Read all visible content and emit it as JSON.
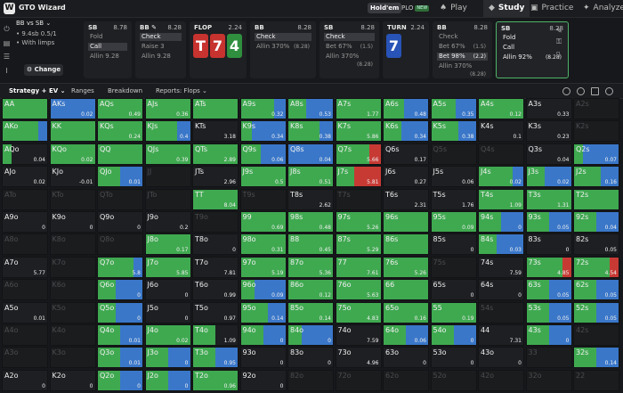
{
  "topbar": {
    "brand": "GTO Wizard",
    "holdem": "Hold'em",
    "plo": "PLO",
    "plo_badge": "NEW",
    "nav": [
      {
        "label": "Play",
        "icon": "play-icon"
      },
      {
        "label": "Study",
        "icon": "study-icon"
      },
      {
        "label": "Practice",
        "icon": "practice-icon"
      },
      {
        "label": "Analyze",
        "icon": "analyze-icon"
      }
    ]
  },
  "spot": {
    "title": "BB vs SB",
    "stack": "9.4sb 0.5/1",
    "limps": "With limps",
    "change": "Change"
  },
  "panels": [
    {
      "pos": "SB",
      "stack": "8.78",
      "actions": [
        {
          "label": "Fold",
          "amount": "",
          "selected": false
        },
        {
          "label": "Call",
          "amount": "",
          "selected": true
        },
        {
          "label": "Allin 9.28",
          "amount": "",
          "selected": false
        }
      ]
    },
    {
      "pos": "BB",
      "stack": "8.28",
      "actions": [
        {
          "label": "Check",
          "amount": "",
          "selected": true
        },
        {
          "label": "Raise 3",
          "amount": "",
          "selected": false
        },
        {
          "label": "Allin 9.28",
          "amount": "",
          "selected": false
        }
      ]
    },
    {
      "pos": "FLOP",
      "stack": "2.24",
      "cards": [
        {
          "rank": "T",
          "color": "red"
        },
        {
          "rank": "7",
          "color": "red"
        },
        {
          "rank": "4",
          "color": "green"
        }
      ]
    },
    {
      "pos": "BB",
      "stack": "8.28",
      "actions": [
        {
          "label": "Check",
          "amount": "",
          "selected": true
        },
        {
          "label": "Allin 370%",
          "amount": "(8.28)",
          "selected": false
        }
      ]
    },
    {
      "pos": "SB",
      "stack": "8.28",
      "actions": [
        {
          "label": "Check",
          "amount": "",
          "selected": true
        },
        {
          "label": "Bet 67%",
          "amount": "(1.5)",
          "selected": false
        },
        {
          "label": "Allin 370%",
          "amount": "(8.28)",
          "selected": false
        }
      ]
    },
    {
      "pos": "TURN",
      "stack": "2.24",
      "cards": [
        {
          "rank": "7",
          "color": "blue"
        }
      ]
    },
    {
      "pos": "BB",
      "stack": "8.28",
      "actions": [
        {
          "label": "Check",
          "amount": "",
          "selected": false
        },
        {
          "label": "Bet 67%",
          "amount": "(1.5)",
          "selected": false
        },
        {
          "label": "Bet 98%",
          "amount": "(2.2)",
          "selected": true
        },
        {
          "label": "Allin 370%",
          "amount": "(8.28)",
          "selected": false
        }
      ]
    },
    {
      "pos": "SB",
      "stack": "8.28",
      "actions": [
        {
          "label": "Fold",
          "amount": "",
          "selected": false
        },
        {
          "label": "Call",
          "amount": "",
          "selected": false
        },
        {
          "label": "Allin 92%",
          "amount": "(8.28)",
          "selected": false
        }
      ]
    }
  ],
  "toolbar": {
    "strategy": "Strategy + EV",
    "ranges": "Ranges",
    "breakdown": "Breakdown",
    "reports": "Reports: Flops"
  },
  "colors": {
    "call": "#3fa950",
    "allin": "#3a77c9",
    "fold": "#c73a34"
  },
  "grid": {
    "rows": [
      [
        [
          "AA",
          "",
          1,
          0,
          0
        ],
        [
          "AKs",
          "0.02",
          0,
          1,
          0
        ],
        [
          "AQs",
          "0.49",
          1,
          0,
          0
        ],
        [
          "AJs",
          "0.36",
          1,
          0,
          0
        ],
        [
          "ATs",
          "",
          1,
          0,
          0
        ],
        [
          "A9s",
          "0.32",
          0.75,
          0.25,
          0
        ],
        [
          "A8s",
          "0.53",
          0.4,
          0.6,
          0
        ],
        [
          "A7s",
          "1.77",
          1,
          0,
          0
        ],
        [
          "A6s",
          "0.48",
          0.45,
          0.55,
          0
        ],
        [
          "A5s",
          "0.35",
          0.55,
          0.45,
          0
        ],
        [
          "A4s",
          "0.12",
          1,
          0,
          0
        ],
        [
          "A3s",
          "0.33",
          0,
          0,
          0
        ],
        [
          "A2s",
          "",
          0,
          0,
          0
        ]
      ],
      [
        [
          "AKo",
          "",
          0.8,
          0.2,
          0
        ],
        [
          "KK",
          "",
          1,
          0,
          0
        ],
        [
          "KQs",
          "0.24",
          1,
          0,
          0
        ],
        [
          "KJs",
          "0.4",
          0.7,
          0.3,
          0
        ],
        [
          "KTs",
          "3.18",
          0,
          0,
          0
        ],
        [
          "K9s",
          "0.34",
          0.25,
          0.75,
          0
        ],
        [
          "K8s",
          "0.38",
          0.7,
          0.3,
          0
        ],
        [
          "K7s",
          "5.86",
          1,
          0,
          0
        ],
        [
          "K6s",
          "0.34",
          0.4,
          0.6,
          0
        ],
        [
          "K5s",
          "0.38",
          0.6,
          0.4,
          0
        ],
        [
          "K4s",
          "0.1",
          0,
          0,
          0
        ],
        [
          "K3s",
          "0.23",
          0,
          0,
          0
        ],
        [
          "K2s",
          "",
          0,
          0,
          0
        ]
      ],
      [
        [
          "AQo",
          "0.04",
          0.2,
          0,
          0
        ],
        [
          "KQo",
          "0.02",
          1,
          0,
          0
        ],
        [
          "QQ",
          "",
          1,
          0,
          0
        ],
        [
          "QJs",
          "0.39",
          1,
          0,
          0
        ],
        [
          "QTs",
          "2.89",
          1,
          0,
          0
        ],
        [
          "Q9s",
          "0.06",
          0.45,
          0.55,
          0
        ],
        [
          "Q8s",
          "0.04",
          0,
          1,
          0
        ],
        [
          "Q7s",
          "5.66",
          0.75,
          0,
          0.25
        ],
        [
          "Q6s",
          "0.17",
          0,
          0,
          0
        ],
        [
          "Q5s",
          "",
          0,
          0,
          0
        ],
        [
          "Q4s",
          "",
          0,
          0,
          0
        ],
        [
          "Q3s",
          "0.04",
          0,
          0,
          0
        ],
        [
          "Q2s",
          "0.07",
          0.2,
          0.8,
          0
        ]
      ],
      [
        [
          "AJo",
          "0.02",
          0,
          0,
          0
        ],
        [
          "KJo",
          "-0.01",
          0,
          0,
          0
        ],
        [
          "QJo",
          "0.01",
          0.5,
          0.5,
          0
        ],
        [
          "JJ",
          "",
          0,
          0,
          0
        ],
        [
          "JTs",
          "2.96",
          0,
          0,
          0
        ],
        [
          "J9s",
          "0.5",
          1,
          0,
          0
        ],
        [
          "J8s",
          "0.51",
          1,
          0,
          0
        ],
        [
          "J7s",
          "5.81",
          0.4,
          0,
          0.6
        ],
        [
          "J6s",
          "0.27",
          0,
          0,
          0
        ],
        [
          "J5s",
          "0.06",
          0,
          0,
          0
        ],
        [
          "J4s",
          "0.02",
          0.75,
          0.25,
          0
        ],
        [
          "J3s",
          "0.02",
          0.4,
          0.6,
          0
        ],
        [
          "J2s",
          "0.16",
          0.6,
          0.4,
          0
        ]
      ],
      [
        [
          "ATo",
          "",
          0,
          0,
          0
        ],
        [
          "KTo",
          "",
          0,
          0,
          0
        ],
        [
          "QTo",
          "",
          0,
          0,
          0
        ],
        [
          "JTo",
          "",
          0,
          0,
          0
        ],
        [
          "TT",
          "8.04",
          1,
          0,
          0
        ],
        [
          "T9s",
          "",
          0,
          0,
          0
        ],
        [
          "T8s",
          "2.62",
          0,
          0,
          0
        ],
        [
          "T7s",
          "",
          0,
          0,
          0
        ],
        [
          "T6s",
          "2.31",
          0,
          0,
          0
        ],
        [
          "T5s",
          "1.76",
          0,
          0,
          0
        ],
        [
          "T4s",
          "1.09",
          1,
          0,
          0
        ],
        [
          "T3s",
          "1.31",
          1,
          0,
          0
        ],
        [
          "T2s",
          "",
          1,
          0,
          0
        ]
      ],
      [
        [
          "A9o",
          "0",
          0,
          0,
          0
        ],
        [
          "K9o",
          "0",
          0,
          0,
          0
        ],
        [
          "Q9o",
          "0",
          0,
          0,
          0
        ],
        [
          "J9o",
          "0.2",
          0,
          0,
          0
        ],
        [
          "T9o",
          "",
          0,
          0,
          0
        ],
        [
          "99",
          "0.69",
          1,
          0,
          0
        ],
        [
          "98s",
          "0.48",
          1,
          0,
          0
        ],
        [
          "97s",
          "5.26",
          1,
          0,
          0
        ],
        [
          "96s",
          "",
          1,
          0,
          0
        ],
        [
          "95s",
          "0.09",
          1,
          0,
          0
        ],
        [
          "94s",
          "0",
          0.5,
          0.5,
          0
        ],
        [
          "93s",
          "0.05",
          0.5,
          0.5,
          0
        ],
        [
          "92s",
          "0.04",
          0.5,
          0.5,
          0
        ]
      ],
      [
        [
          "A8o",
          "",
          0,
          0,
          0
        ],
        [
          "K8o",
          "",
          0,
          0,
          0
        ],
        [
          "Q8o",
          "",
          0,
          0,
          0
        ],
        [
          "J8o",
          "0.17",
          1,
          0,
          0
        ],
        [
          "T8o",
          "0",
          0,
          0,
          0
        ],
        [
          "98o",
          "0.31",
          1,
          0,
          0
        ],
        [
          "88",
          "0.45",
          1,
          0,
          0
        ],
        [
          "87s",
          "5.29",
          1,
          0,
          0
        ],
        [
          "86s",
          "",
          1,
          0,
          0
        ],
        [
          "85s",
          "0",
          0,
          0,
          0
        ],
        [
          "84s",
          "0.03",
          0.4,
          0.6,
          0
        ],
        [
          "83s",
          "0",
          0,
          0,
          0
        ],
        [
          "82s",
          "0.05",
          0,
          0,
          0
        ]
      ],
      [
        [
          "A7o",
          "5.77",
          0,
          0,
          0
        ],
        [
          "K7o",
          "",
          0,
          0,
          0
        ],
        [
          "Q7o",
          "5.8",
          0.8,
          0.2,
          0
        ],
        [
          "J7o",
          "5.85",
          1,
          0,
          0
        ],
        [
          "T7o",
          "7.81",
          0,
          0,
          0
        ],
        [
          "97o",
          "5.19",
          1,
          0,
          0
        ],
        [
          "87o",
          "5.36",
          1,
          0,
          0
        ],
        [
          "77",
          "7.61",
          1,
          0,
          0
        ],
        [
          "76s",
          "5.26",
          1,
          0,
          0
        ],
        [
          "75s",
          "",
          0,
          0,
          0
        ],
        [
          "74s",
          "7.59",
          0,
          0,
          0
        ],
        [
          "73s",
          "4.85",
          0.8,
          0,
          0.2
        ],
        [
          "72s",
          "4.54",
          0.8,
          0,
          0.2
        ]
      ],
      [
        [
          "A6o",
          "",
          0,
          0,
          0
        ],
        [
          "K6o",
          "",
          0,
          0,
          0
        ],
        [
          "Q6o",
          "0",
          0.4,
          0.6,
          0
        ],
        [
          "J6o",
          "0",
          0,
          0,
          0
        ],
        [
          "T6o",
          "0.99",
          0,
          0,
          0
        ],
        [
          "96o",
          "0.09",
          0.3,
          0.7,
          0
        ],
        [
          "86o",
          "0.12",
          1,
          0,
          0
        ],
        [
          "76o",
          "5.63",
          1,
          0,
          0
        ],
        [
          "66",
          "",
          1,
          0,
          0
        ],
        [
          "65s",
          "0",
          0,
          0,
          0
        ],
        [
          "64s",
          "0",
          0,
          0,
          0
        ],
        [
          "63s",
          "0.05",
          0.5,
          0.5,
          0
        ],
        [
          "62s",
          "0.05",
          0.5,
          0.5,
          0
        ]
      ],
      [
        [
          "A5o",
          "0.01",
          0,
          0,
          0
        ],
        [
          "K5o",
          "",
          0,
          0,
          0
        ],
        [
          "Q5o",
          "0",
          0.4,
          0.6,
          0
        ],
        [
          "J5o",
          "0",
          0,
          0,
          0
        ],
        [
          "T5o",
          "0.97",
          0,
          0,
          0
        ],
        [
          "95o",
          "0.14",
          0.6,
          0.4,
          0
        ],
        [
          "85o",
          "0.14",
          1,
          0,
          0
        ],
        [
          "75o",
          "4.83",
          1,
          0,
          0
        ],
        [
          "65o",
          "0.16",
          1,
          0,
          0
        ],
        [
          "55",
          "0.19",
          1,
          0,
          0
        ],
        [
          "54s",
          "",
          0,
          0,
          0
        ],
        [
          "53s",
          "0.05",
          0.5,
          0.5,
          0
        ],
        [
          "52s",
          "0.05",
          0.5,
          0.5,
          0
        ]
      ],
      [
        [
          "A4o",
          "",
          0,
          0,
          0
        ],
        [
          "K4o",
          "",
          0,
          0,
          0
        ],
        [
          "Q4o",
          "0.01",
          0.5,
          0.5,
          0
        ],
        [
          "J4o",
          "0.02",
          1,
          0,
          0
        ],
        [
          "T4o",
          "1.09",
          0.5,
          0,
          0
        ],
        [
          "94o",
          "0",
          0.5,
          0.5,
          0
        ],
        [
          "84o",
          "0",
          0.3,
          0.7,
          0
        ],
        [
          "74o",
          "7.59",
          0,
          0,
          0
        ],
        [
          "64o",
          "0.06",
          0.5,
          0.5,
          0
        ],
        [
          "54o",
          "0",
          0.5,
          0.5,
          0
        ],
        [
          "44",
          "7.31",
          0,
          0,
          0
        ],
        [
          "43s",
          "0",
          0.5,
          0.5,
          0
        ],
        [
          "42s",
          "",
          0,
          0,
          0
        ]
      ],
      [
        [
          "A3o",
          "",
          0,
          0,
          0
        ],
        [
          "K3o",
          "",
          0,
          0,
          0
        ],
        [
          "Q3o",
          "0.01",
          0.5,
          0.5,
          0
        ],
        [
          "J3o",
          "0",
          0.5,
          0.5,
          0
        ],
        [
          "T3o",
          "0.95",
          0.5,
          0.5,
          0
        ],
        [
          "93o",
          "0",
          0,
          0,
          0
        ],
        [
          "83o",
          "0",
          0,
          0,
          0
        ],
        [
          "73o",
          "4.96",
          0,
          0,
          0
        ],
        [
          "63o",
          "0",
          0,
          0,
          0
        ],
        [
          "53o",
          "0",
          0,
          0,
          0
        ],
        [
          "43o",
          "0",
          0,
          0,
          0
        ],
        [
          "33",
          "",
          0,
          0,
          0
        ],
        [
          "32s",
          "0.14",
          0.5,
          0.5,
          0
        ]
      ],
      [
        [
          "A2o",
          "0",
          0,
          0,
          0
        ],
        [
          "K2o",
          "0",
          0,
          0,
          0
        ],
        [
          "Q2o",
          "0",
          0.5,
          0.5,
          0
        ],
        [
          "J2o",
          "0",
          0.5,
          0.5,
          0
        ],
        [
          "T2o",
          "0.96",
          1,
          0,
          0
        ],
        [
          "92o",
          "0",
          0,
          0,
          0
        ],
        [
          "82o",
          "",
          0,
          0,
          0
        ],
        [
          "72o",
          "",
          0,
          0,
          0
        ],
        [
          "62o",
          "",
          0,
          0,
          0
        ],
        [
          "52o",
          "",
          0,
          0,
          0
        ],
        [
          "42o",
          "",
          0,
          0,
          0
        ],
        [
          "32o",
          "",
          0,
          0,
          0
        ],
        [
          "22",
          "",
          0,
          0,
          0
        ]
      ]
    ]
  }
}
